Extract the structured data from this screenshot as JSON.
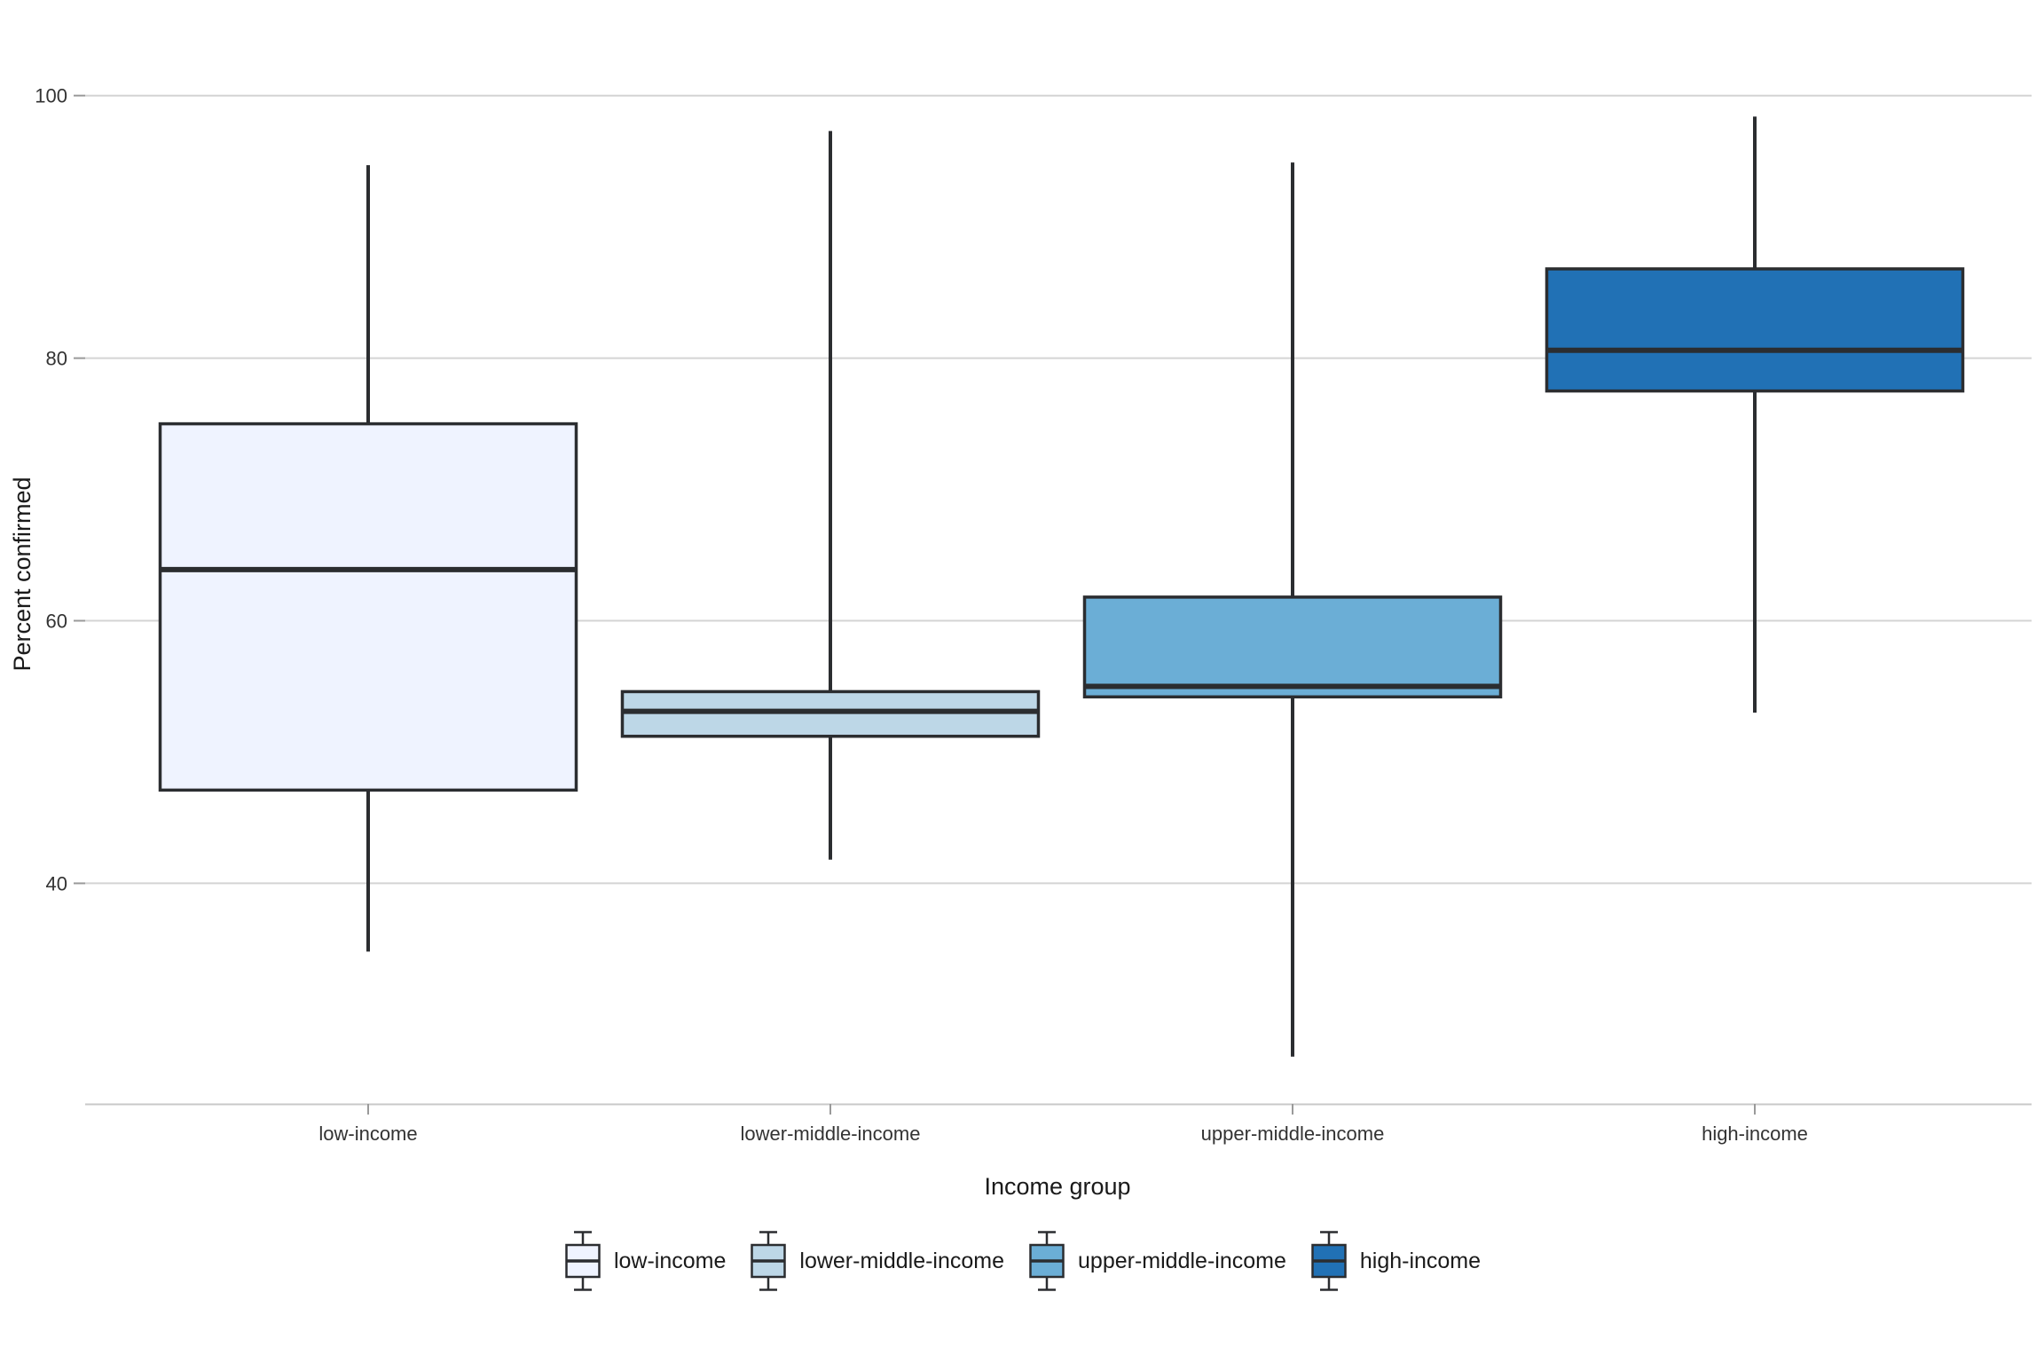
{
  "chart_data": {
    "type": "boxplot",
    "title": "",
    "xlabel": "Income group",
    "ylabel": "Percent confirmed",
    "categories": [
      "low-income",
      "lower-middle-income",
      "upper-middle-income",
      "high-income"
    ],
    "series": [
      {
        "name": "low-income",
        "color": "#eff3ff",
        "min": 34.8,
        "q1": 47.1,
        "median": 63.9,
        "q3": 75.0,
        "max": 94.7
      },
      {
        "name": "lower-middle-income",
        "color": "#bdd7e7",
        "min": 41.8,
        "q1": 51.2,
        "median": 53.1,
        "q3": 54.6,
        "max": 97.3
      },
      {
        "name": "upper-middle-income",
        "color": "#6baed6",
        "min": 26.8,
        "q1": 54.2,
        "median": 55.0,
        "q3": 61.8,
        "max": 94.9
      },
      {
        "name": "high-income",
        "color": "#2171b5",
        "min": 53.0,
        "q1": 77.5,
        "median": 80.6,
        "q3": 86.8,
        "max": 98.4
      }
    ],
    "y_ticks": [
      40,
      60,
      80,
      100
    ],
    "ylim": [
      23.2,
      103.9
    ],
    "grid": "horizontal-major-only",
    "legend_position": "bottom"
  },
  "axes": {
    "x_title": "Income group",
    "y_title": "Percent confirmed"
  },
  "legend": {
    "items": [
      {
        "label": "low-income",
        "color": "#eff3ff"
      },
      {
        "label": "lower-middle-income",
        "color": "#bdd7e7"
      },
      {
        "label": "upper-middle-income",
        "color": "#6baed6"
      },
      {
        "label": "high-income",
        "color": "#2171b5"
      }
    ]
  },
  "colors": {
    "box_border": "#2b2d30",
    "gridline": "#d4d4d4",
    "axis_line": "#c9c9c9",
    "tick_mark": "#9a9a9a",
    "tick_label": "#333333",
    "title_text": "#1a1a1a",
    "background": "#ffffff"
  }
}
